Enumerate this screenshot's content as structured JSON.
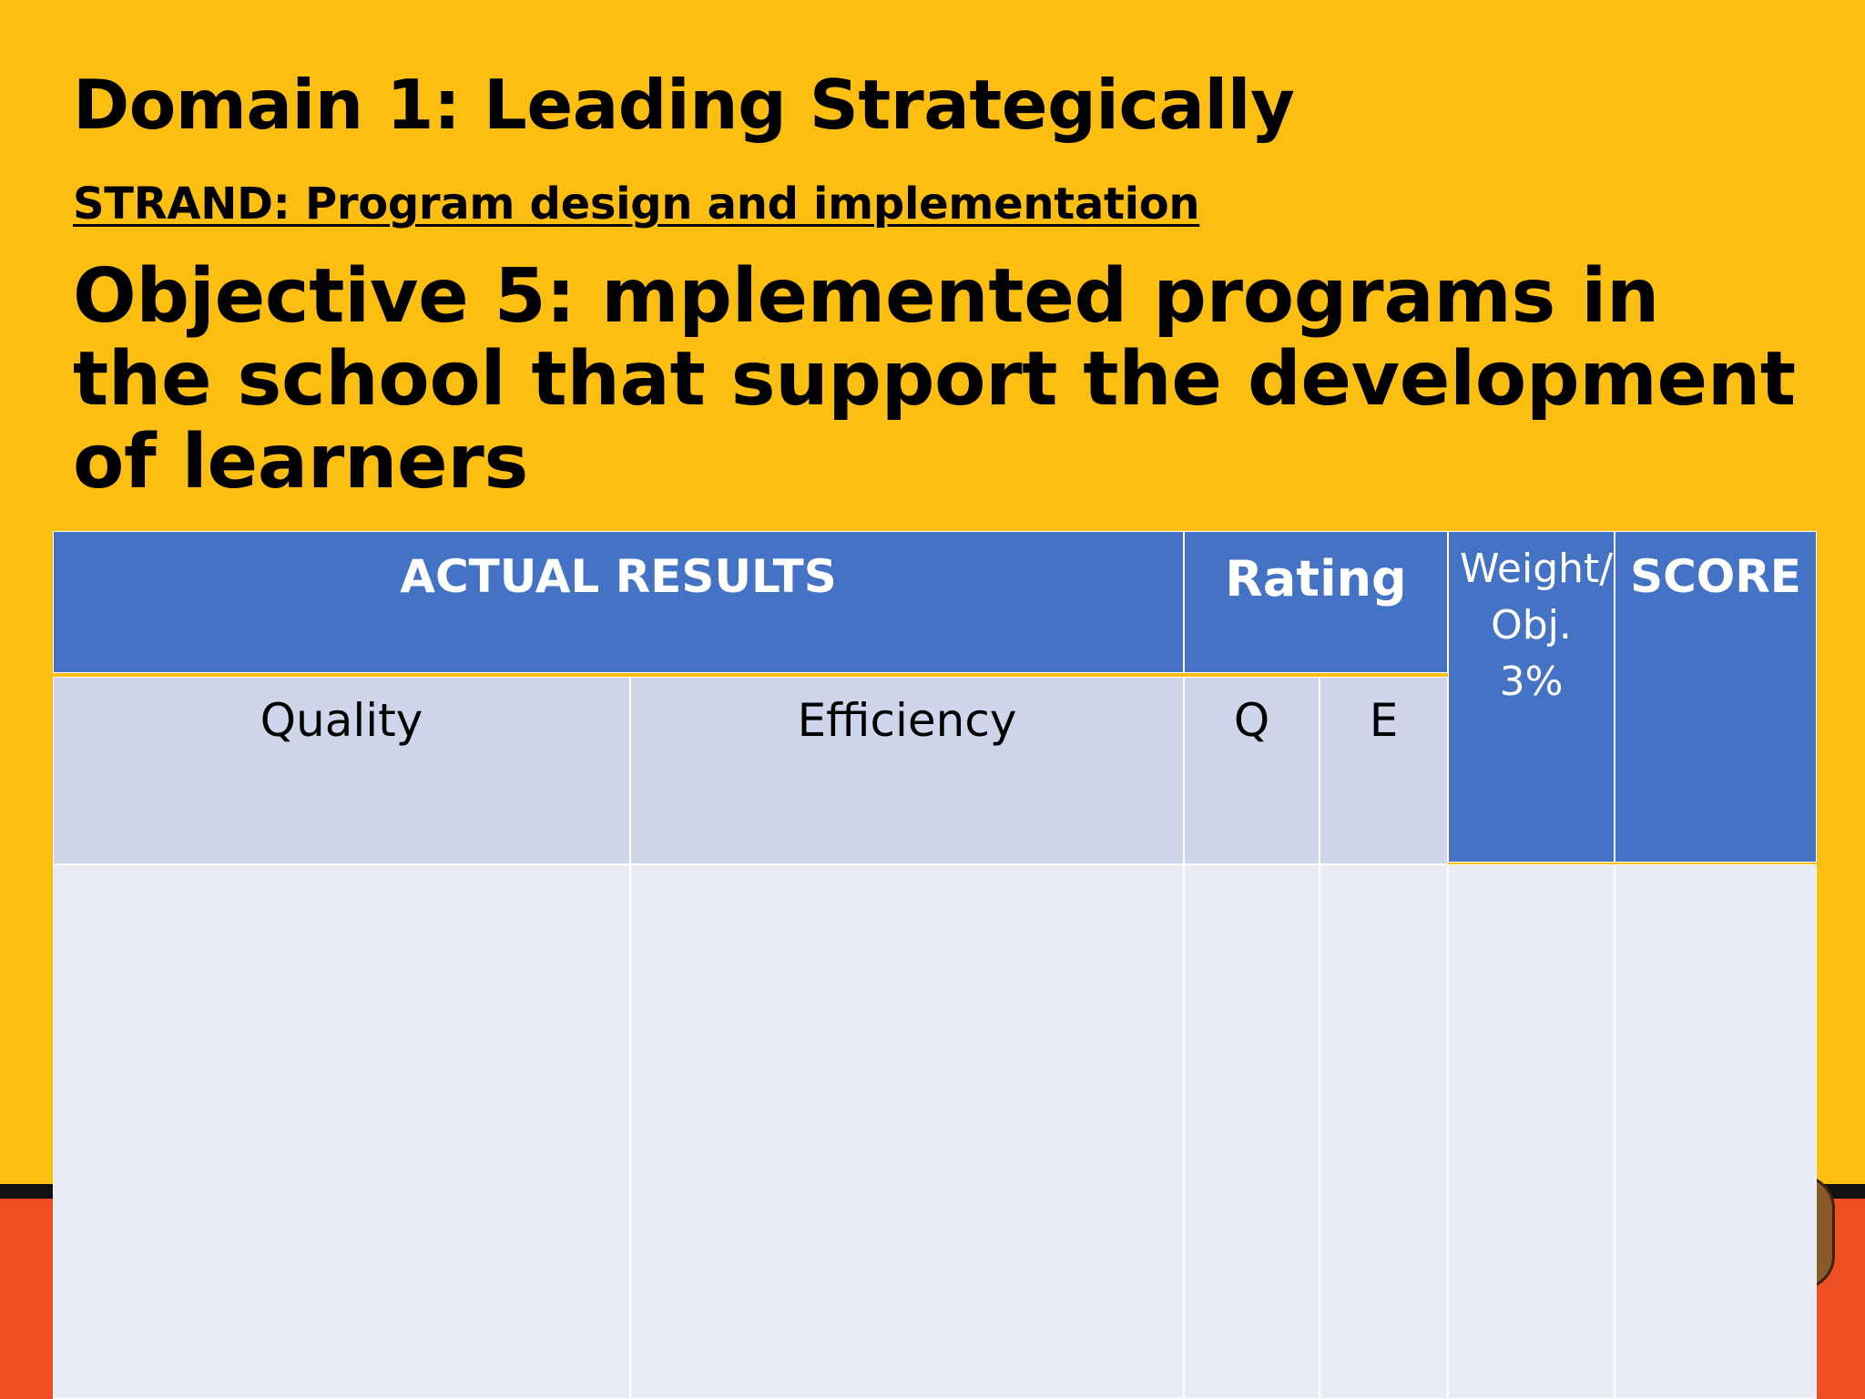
{
  "slide": {
    "title": "Domain 1: Leading Strategically",
    "strand": "STRAND: Program design and implementation ",
    "objective": "Objective 5: mplemented programs in the school that support the development of learners"
  },
  "table": {
    "header_actual_results": "ACTUAL RESULTS",
    "header_rating": "Rating",
    "header_weight": "Weight/ Obj. 3%",
    "header_score": "SCORE",
    "sub_quality": "Quality",
    "sub_efficiency": "Efficiency",
    "sub_q": "Q",
    "sub_e": "E",
    "row_values": [
      "",
      "",
      "",
      "",
      "",
      ""
    ]
  },
  "colors": {
    "background": "#FDBE12",
    "header_blue": "#4472C4",
    "subheader": "#CFD5EA",
    "body_cell": "#E9EBF5",
    "bottom_stripe": "#F04E23"
  }
}
